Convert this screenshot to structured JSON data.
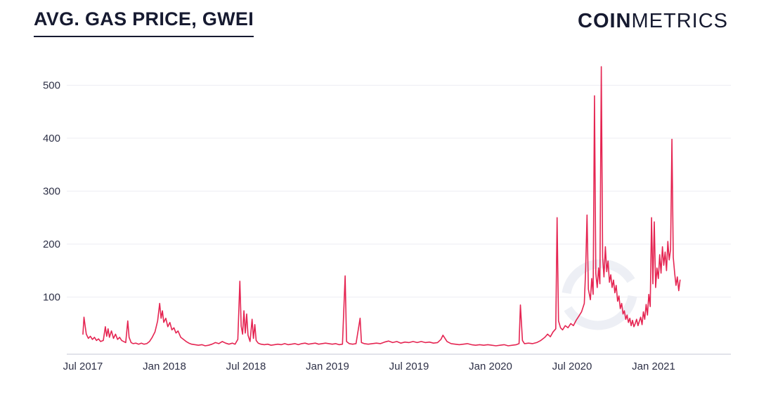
{
  "header": {
    "title": "AVG. GAS PRICE, GWEI",
    "brand_bold": "COIN",
    "brand_light": "METRICS"
  },
  "colors": {
    "line": "#e52552",
    "grid": "#ededf3",
    "axis_line": "#d8dae3",
    "tick_text": "#2e3147",
    "title_text": "#161a30",
    "watermark": "#eceef4"
  },
  "icons": {
    "watermark": "coinmetrics-watermark-icon"
  },
  "chart_data": {
    "type": "line",
    "title": "AVG. GAS PRICE, GWEI",
    "xlabel": "",
    "ylabel": "",
    "legend": "none",
    "grid": true,
    "ylim": [
      0,
      560
    ],
    "y_ticks": [
      100,
      200,
      300,
      400,
      500
    ],
    "x_unit": "months since Jul 2017",
    "x_ticks": [
      {
        "label": "Jul 2017",
        "month": 0
      },
      {
        "label": "Jan 2018",
        "month": 6
      },
      {
        "label": "Jul 2018",
        "month": 12
      },
      {
        "label": "Jan 2019",
        "month": 18
      },
      {
        "label": "Jul 2019",
        "month": 24
      },
      {
        "label": "Jan 2020",
        "month": 30
      },
      {
        "label": "Jul 2020",
        "month": 36
      },
      {
        "label": "Jan 2021",
        "month": 42
      }
    ],
    "series": [
      {
        "name": "avg-gas-price-gwei",
        "points": [
          [
            0,
            30
          ],
          [
            0.08,
            62
          ],
          [
            0.15,
            48
          ],
          [
            0.25,
            30
          ],
          [
            0.4,
            22
          ],
          [
            0.55,
            26
          ],
          [
            0.7,
            20
          ],
          [
            0.85,
            24
          ],
          [
            1.0,
            18
          ],
          [
            1.15,
            21
          ],
          [
            1.3,
            16
          ],
          [
            1.5,
            18
          ],
          [
            1.65,
            44
          ],
          [
            1.75,
            26
          ],
          [
            1.85,
            40
          ],
          [
            1.95,
            24
          ],
          [
            2.1,
            36
          ],
          [
            2.25,
            22
          ],
          [
            2.4,
            30
          ],
          [
            2.55,
            20
          ],
          [
            2.7,
            24
          ],
          [
            2.85,
            18
          ],
          [
            3.0,
            16
          ],
          [
            3.15,
            14
          ],
          [
            3.3,
            55
          ],
          [
            3.4,
            24
          ],
          [
            3.55,
            14
          ],
          [
            3.7,
            12
          ],
          [
            3.9,
            13
          ],
          [
            4.1,
            11
          ],
          [
            4.3,
            13
          ],
          [
            4.5,
            11
          ],
          [
            4.7,
            12
          ],
          [
            4.9,
            16
          ],
          [
            5.1,
            24
          ],
          [
            5.3,
            34
          ],
          [
            5.5,
            55
          ],
          [
            5.65,
            88
          ],
          [
            5.75,
            60
          ],
          [
            5.85,
            74
          ],
          [
            5.95,
            52
          ],
          [
            6.1,
            60
          ],
          [
            6.25,
            44
          ],
          [
            6.4,
            52
          ],
          [
            6.55,
            38
          ],
          [
            6.7,
            42
          ],
          [
            6.85,
            32
          ],
          [
            7.0,
            36
          ],
          [
            7.2,
            24
          ],
          [
            7.4,
            20
          ],
          [
            7.6,
            16
          ],
          [
            7.8,
            13
          ],
          [
            8.0,
            11
          ],
          [
            8.25,
            10
          ],
          [
            8.5,
            9
          ],
          [
            8.75,
            10
          ],
          [
            9.0,
            8
          ],
          [
            9.25,
            9
          ],
          [
            9.5,
            11
          ],
          [
            9.75,
            14
          ],
          [
            10.0,
            12
          ],
          [
            10.25,
            16
          ],
          [
            10.5,
            13
          ],
          [
            10.75,
            11
          ],
          [
            11.0,
            13
          ],
          [
            11.2,
            11
          ],
          [
            11.4,
            20
          ],
          [
            11.55,
            130
          ],
          [
            11.65,
            45
          ],
          [
            11.75,
            30
          ],
          [
            11.85,
            74
          ],
          [
            11.95,
            32
          ],
          [
            12.05,
            68
          ],
          [
            12.15,
            28
          ],
          [
            12.3,
            16
          ],
          [
            12.45,
            58
          ],
          [
            12.55,
            22
          ],
          [
            12.65,
            48
          ],
          [
            12.75,
            18
          ],
          [
            12.9,
            13
          ],
          [
            13.1,
            11
          ],
          [
            13.35,
            10
          ],
          [
            13.6,
            11
          ],
          [
            13.85,
            9
          ],
          [
            14.1,
            10
          ],
          [
            14.35,
            11
          ],
          [
            14.6,
            10
          ],
          [
            14.85,
            12
          ],
          [
            15.1,
            10
          ],
          [
            15.35,
            11
          ],
          [
            15.6,
            12
          ],
          [
            15.85,
            10
          ],
          [
            16.1,
            12
          ],
          [
            16.35,
            13
          ],
          [
            16.6,
            11
          ],
          [
            16.85,
            12
          ],
          [
            17.1,
            13
          ],
          [
            17.35,
            11
          ],
          [
            17.6,
            12
          ],
          [
            17.85,
            13
          ],
          [
            18.1,
            12
          ],
          [
            18.35,
            11
          ],
          [
            18.6,
            12
          ],
          [
            18.85,
            10
          ],
          [
            19.1,
            11
          ],
          [
            19.3,
            140
          ],
          [
            19.4,
            16
          ],
          [
            19.6,
            12
          ],
          [
            19.85,
            11
          ],
          [
            20.1,
            12
          ],
          [
            20.4,
            60
          ],
          [
            20.5,
            14
          ],
          [
            20.7,
            12
          ],
          [
            21.0,
            11
          ],
          [
            21.3,
            12
          ],
          [
            21.6,
            13
          ],
          [
            21.9,
            12
          ],
          [
            22.2,
            15
          ],
          [
            22.5,
            17
          ],
          [
            22.8,
            14
          ],
          [
            23.1,
            16
          ],
          [
            23.4,
            13
          ],
          [
            23.7,
            15
          ],
          [
            24.0,
            14
          ],
          [
            24.3,
            16
          ],
          [
            24.6,
            14
          ],
          [
            24.9,
            16
          ],
          [
            25.2,
            14
          ],
          [
            25.5,
            15
          ],
          [
            25.8,
            13
          ],
          [
            26.1,
            14
          ],
          [
            26.35,
            20
          ],
          [
            26.5,
            28
          ],
          [
            26.65,
            22
          ],
          [
            26.8,
            16
          ],
          [
            27.1,
            12
          ],
          [
            27.4,
            11
          ],
          [
            27.7,
            10
          ],
          [
            28.0,
            11
          ],
          [
            28.3,
            12
          ],
          [
            28.6,
            10
          ],
          [
            28.9,
            9
          ],
          [
            29.2,
            10
          ],
          [
            29.5,
            9
          ],
          [
            29.8,
            10
          ],
          [
            30.1,
            9
          ],
          [
            30.4,
            8
          ],
          [
            30.7,
            9
          ],
          [
            31.0,
            10
          ],
          [
            31.3,
            8
          ],
          [
            31.6,
            9
          ],
          [
            31.9,
            10
          ],
          [
            32.1,
            12
          ],
          [
            32.2,
            85
          ],
          [
            32.35,
            18
          ],
          [
            32.5,
            12
          ],
          [
            32.8,
            13
          ],
          [
            33.1,
            12
          ],
          [
            33.4,
            14
          ],
          [
            33.7,
            18
          ],
          [
            34.0,
            24
          ],
          [
            34.2,
            30
          ],
          [
            34.4,
            25
          ],
          [
            34.6,
            34
          ],
          [
            34.8,
            40
          ],
          [
            34.9,
            250
          ],
          [
            35.0,
            55
          ],
          [
            35.15,
            42
          ],
          [
            35.3,
            38
          ],
          [
            35.5,
            46
          ],
          [
            35.7,
            42
          ],
          [
            35.9,
            50
          ],
          [
            36.1,
            46
          ],
          [
            36.3,
            56
          ],
          [
            36.5,
            64
          ],
          [
            36.7,
            72
          ],
          [
            36.9,
            88
          ],
          [
            37.0,
            150
          ],
          [
            37.1,
            255
          ],
          [
            37.2,
            115
          ],
          [
            37.35,
            95
          ],
          [
            37.45,
            135
          ],
          [
            37.55,
            105
          ],
          [
            37.65,
            480
          ],
          [
            37.75,
            145
          ],
          [
            37.85,
            118
          ],
          [
            37.95,
            155
          ],
          [
            38.05,
            125
          ],
          [
            38.15,
            535
          ],
          [
            38.25,
            175
          ],
          [
            38.35,
            138
          ],
          [
            38.45,
            195
          ],
          [
            38.55,
            148
          ],
          [
            38.65,
            168
          ],
          [
            38.75,
            128
          ],
          [
            38.85,
            142
          ],
          [
            38.95,
            118
          ],
          [
            39.05,
            132
          ],
          [
            39.15,
            108
          ],
          [
            39.25,
            122
          ],
          [
            39.35,
            92
          ],
          [
            39.45,
            102
          ],
          [
            39.55,
            78
          ],
          [
            39.65,
            88
          ],
          [
            39.75,
            68
          ],
          [
            39.85,
            74
          ],
          [
            39.95,
            58
          ],
          [
            40.05,
            66
          ],
          [
            40.15,
            52
          ],
          [
            40.25,
            60
          ],
          [
            40.35,
            46
          ],
          [
            40.45,
            56
          ],
          [
            40.55,
            44
          ],
          [
            40.65,
            50
          ],
          [
            40.75,
            58
          ],
          [
            40.85,
            46
          ],
          [
            40.95,
            54
          ],
          [
            41.05,
            62
          ],
          [
            41.15,
            48
          ],
          [
            41.25,
            72
          ],
          [
            41.35,
            58
          ],
          [
            41.45,
            86
          ],
          [
            41.55,
            66
          ],
          [
            41.65,
            105
          ],
          [
            41.75,
            82
          ],
          [
            41.85,
            250
          ],
          [
            41.95,
            125
          ],
          [
            42.05,
            242
          ],
          [
            42.15,
            118
          ],
          [
            42.25,
            155
          ],
          [
            42.35,
            135
          ],
          [
            42.45,
            180
          ],
          [
            42.55,
            145
          ],
          [
            42.65,
            195
          ],
          [
            42.75,
            160
          ],
          [
            42.85,
            185
          ],
          [
            42.95,
            150
          ],
          [
            43.05,
            205
          ],
          [
            43.15,
            170
          ],
          [
            43.25,
            190
          ],
          [
            43.35,
            398
          ],
          [
            43.45,
            175
          ],
          [
            43.55,
            145
          ],
          [
            43.65,
            122
          ],
          [
            43.75,
            138
          ],
          [
            43.85,
            112
          ],
          [
            43.95,
            132
          ]
        ]
      }
    ]
  }
}
